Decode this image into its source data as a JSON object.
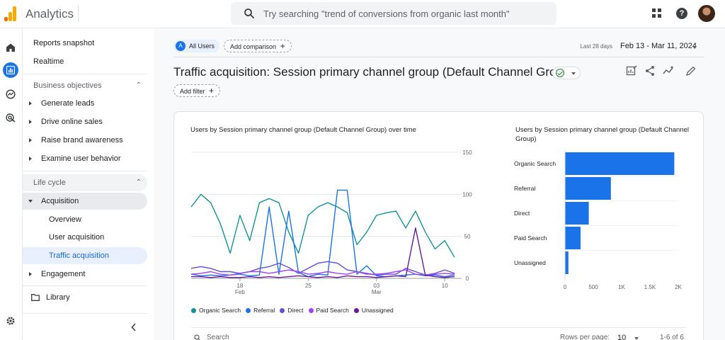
{
  "header": {
    "app_title": "Analytics",
    "search_placeholder": "Try searching \"trend of conversions from organic last month\""
  },
  "sidebar": {
    "reports_snapshot": "Reports snapshot",
    "realtime": "Realtime",
    "business_objectives": {
      "title": "Business objectives",
      "items": [
        "Generate leads",
        "Drive online sales",
        "Raise brand awareness",
        "Examine user behavior"
      ]
    },
    "life_cycle": {
      "title": "Life cycle",
      "acquisition": "Acquisition",
      "acquisition_items": [
        "Overview",
        "User acquisition",
        "Traffic acquisition"
      ],
      "active_item": "Traffic acquisition",
      "engagement": "Engagement"
    },
    "library": "Library"
  },
  "toolbar": {
    "segment_badge": "A",
    "segment_label": "All Users",
    "add_comparison": "Add comparison",
    "date_prefix": "Last 28 days",
    "date_range": "Feb 13 - Mar 11, 2024",
    "add_filter": "Add filter"
  },
  "page": {
    "title": "Traffic acquisition: Session primary channel group (Default Channel Group)"
  },
  "table_controls": {
    "search_placeholder": "Search",
    "rows_per_page_label": "Rows per page:",
    "rows_per_page_value": "10",
    "pagination": "1-6 of 6"
  },
  "colors": {
    "organic_search": "#12939a",
    "referral": "#1a73e8",
    "direct": "#5c4fd8",
    "paid_search": "#a142f4",
    "unassigned": "#6a1b9a",
    "bar": "#1a73e8"
  },
  "chart_data": [
    {
      "type": "line",
      "title": "Users by Session primary channel group (Default Channel Group) over time",
      "x": [
        "Feb 13",
        "Feb 14",
        "Feb 15",
        "Feb 16",
        "Feb 17",
        "Feb 18",
        "Feb 19",
        "Feb 20",
        "Feb 21",
        "Feb 22",
        "Feb 23",
        "Feb 24",
        "Feb 25",
        "Feb 26",
        "Feb 27",
        "Feb 28",
        "Feb 29",
        "Mar 1",
        "Mar 2",
        "Mar 3",
        "Mar 4",
        "Mar 5",
        "Mar 6",
        "Mar 7",
        "Mar 8",
        "Mar 9",
        "Mar 10",
        "Mar 11"
      ],
      "x_ticks": [
        {
          "at": "Feb 18",
          "day": "18",
          "month": "Feb"
        },
        {
          "at": "Feb 25",
          "day": "25",
          "month": ""
        },
        {
          "at": "Mar 3",
          "day": "03",
          "month": "Mar"
        },
        {
          "at": "Mar 10",
          "day": "10",
          "month": ""
        }
      ],
      "ylim": [
        0,
        150
      ],
      "y_ticks": [
        0,
        50,
        100,
        150
      ],
      "y_axis_side": "right",
      "legend_position": "bottom",
      "series": [
        {
          "name": "Organic Search",
          "color": "#12939a",
          "values": [
            85,
            100,
            90,
            65,
            30,
            75,
            45,
            90,
            95,
            90,
            55,
            30,
            75,
            85,
            90,
            85,
            78,
            40,
            55,
            75,
            78,
            80,
            60,
            80,
            55,
            35,
            45,
            25
          ]
        },
        {
          "name": "Referral",
          "color": "#1a73e8",
          "values": [
            5,
            3,
            4,
            3,
            4,
            5,
            3,
            4,
            85,
            5,
            80,
            7,
            2,
            5,
            4,
            105,
            105,
            5,
            15,
            3,
            2,
            3,
            4,
            5,
            3,
            4,
            2,
            4
          ]
        },
        {
          "name": "Direct",
          "color": "#5c4fd8",
          "values": [
            12,
            14,
            12,
            8,
            8,
            6,
            8,
            12,
            14,
            18,
            13,
            6,
            12,
            18,
            20,
            18,
            10,
            8,
            6,
            4,
            5,
            5,
            12,
            8,
            4,
            6,
            10,
            6
          ]
        },
        {
          "name": "Paid Search",
          "color": "#a142f4",
          "values": [
            5,
            6,
            8,
            5,
            4,
            6,
            8,
            8,
            6,
            8,
            10,
            8,
            5,
            6,
            8,
            6,
            5,
            8,
            5,
            5,
            6,
            8,
            10,
            5,
            4,
            5,
            6,
            5
          ]
        },
        {
          "name": "Unassigned",
          "color": "#6a1b9a",
          "values": [
            2,
            2,
            1,
            2,
            1,
            1,
            2,
            1,
            2,
            1,
            2,
            3,
            2,
            1,
            2,
            1,
            3,
            2,
            2,
            1,
            2,
            3,
            2,
            60,
            4,
            2,
            1,
            2
          ]
        }
      ]
    },
    {
      "type": "bar",
      "orientation": "horizontal",
      "title": "Users by Session primary channel group (Default Channel Group)",
      "categories": [
        "Organic Search",
        "Referral",
        "Direct",
        "Paid Search",
        "Unassigned"
      ],
      "values": [
        1930,
        810,
        420,
        275,
        60
      ],
      "xlim": [
        0,
        2000
      ],
      "x_ticks": [
        "0",
        "500",
        "1K",
        "1.5K",
        "2K"
      ],
      "color": "#1a73e8"
    }
  ]
}
